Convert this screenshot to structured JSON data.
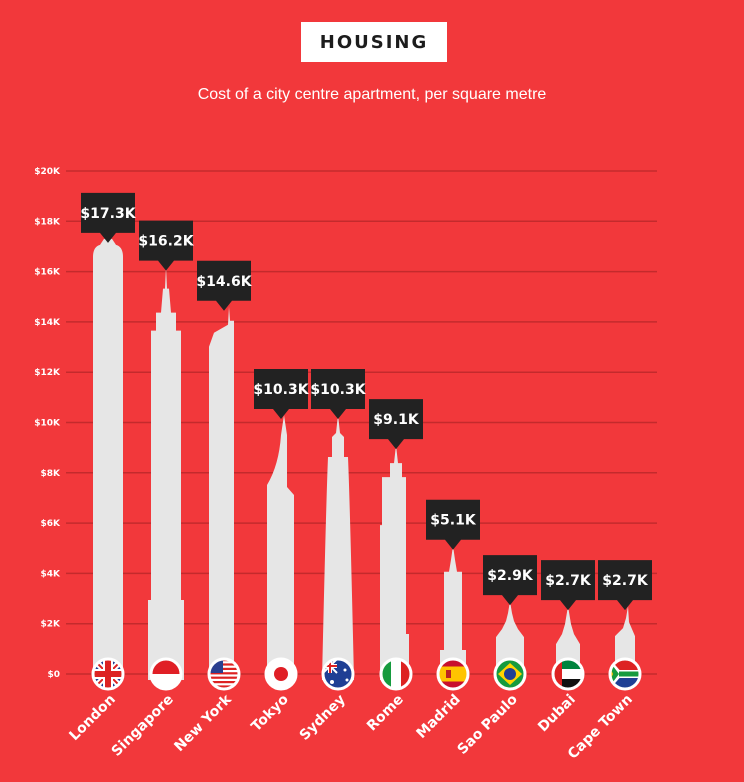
{
  "header": {
    "title": "HOUSING",
    "subtitle": "Cost of a city centre apartment, per square metre"
  },
  "colors": {
    "background": "#f2383b",
    "grid": "#c42a2c",
    "building": "#e6e6e6",
    "label_box": "#222222",
    "text": "#ffffff"
  },
  "chart_data": {
    "type": "bar",
    "title": "Cost of a city centre apartment, per square metre",
    "categories": [
      "London",
      "Singapore",
      "New York",
      "Tokyo",
      "Sydney",
      "Rome",
      "Madrid",
      "Sao Paulo",
      "Dubai",
      "Cape Town"
    ],
    "values": [
      17.3,
      16.2,
      14.6,
      10.3,
      10.3,
      9.1,
      5.1,
      2.9,
      2.7,
      2.7
    ],
    "data_labels": [
      "$17.3K",
      "$16.2K",
      "$14.6K",
      "$10.3K",
      "$10.3K",
      "$9.1K",
      "$5.1K",
      "$2.9K",
      "$2.7K",
      "$2.7K"
    ],
    "unit": "thousand USD",
    "yticks": [
      0,
      2,
      4,
      6,
      8,
      10,
      12,
      14,
      16,
      18,
      20
    ],
    "ytick_labels": [
      "$0",
      "$2K",
      "$4K",
      "$6K",
      "$8K",
      "$10K",
      "$12K",
      "$14K",
      "$16K",
      "$18K",
      "$20K"
    ],
    "ylim": [
      0,
      20
    ],
    "grid": true,
    "flags": [
      "uk-flag-icon",
      "singapore-flag-icon",
      "usa-flag-icon",
      "japan-flag-icon",
      "australia-flag-icon",
      "italy-flag-icon",
      "spain-flag-icon",
      "brazil-flag-icon",
      "uae-flag-icon",
      "south-africa-flag-icon"
    ]
  }
}
